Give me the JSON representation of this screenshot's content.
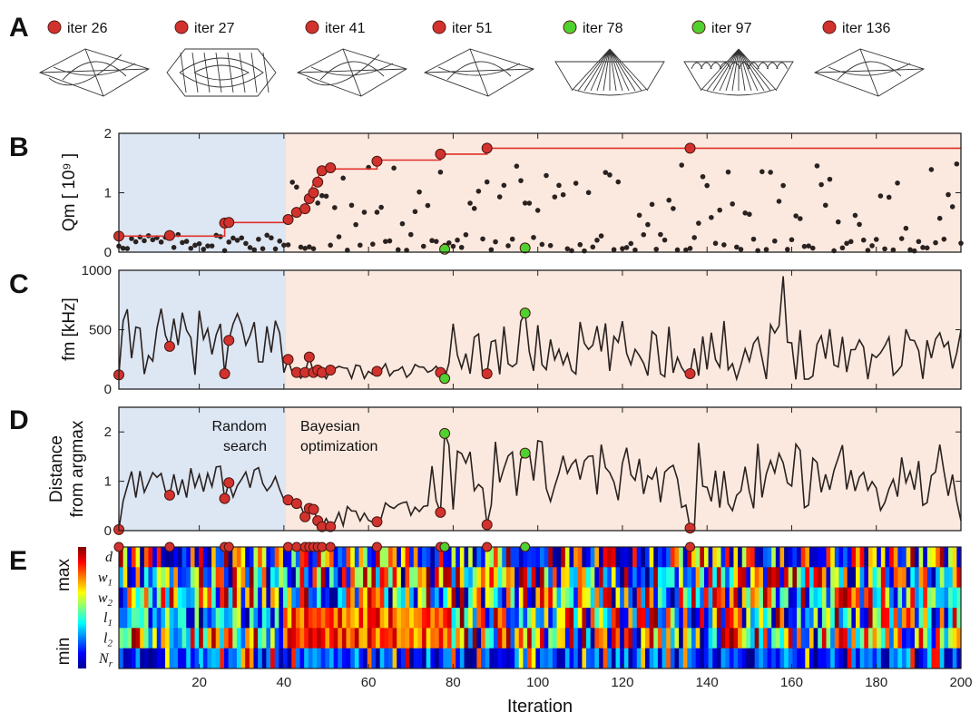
{
  "panel_labels": [
    "A",
    "B",
    "C",
    "D",
    "E"
  ],
  "colors": {
    "red_marker": "#d2322d",
    "green_marker": "#4fd130",
    "random_bg": "#dde6f3",
    "bayes_bg": "#fbe9df",
    "line": "#2a2220",
    "best_line": "#e0302a"
  },
  "header_iters": [
    {
      "label": "iter 26",
      "color": "red",
      "shape": "twisted"
    },
    {
      "label": "iter 27",
      "color": "red",
      "shape": "ellipse-cage"
    },
    {
      "label": "iter 41",
      "color": "red",
      "shape": "lens"
    },
    {
      "label": "iter 51",
      "color": "red",
      "shape": "diamond"
    },
    {
      "label": "iter 78",
      "color": "green",
      "shape": "dome"
    },
    {
      "label": "iter 97",
      "color": "green",
      "shape": "wavy-dome"
    },
    {
      "label": "iter 136",
      "color": "red",
      "shape": "diamond"
    }
  ],
  "annotations": {
    "random": [
      "Random",
      "search"
    ],
    "bayes": [
      "Bayesian",
      "optimization"
    ]
  },
  "heatmap": {
    "rows": [
      "d",
      "w1",
      "w2",
      "l1",
      "l2",
      "Nr"
    ],
    "colorbar_max": "max",
    "colorbar_min": "min"
  },
  "chart_data": [
    {
      "type": "scatter",
      "panel": "B",
      "ylabel": "Qm [ 10⁹ ]",
      "ylim": [
        0,
        2
      ],
      "yticks": [
        "0",
        "1",
        "2"
      ],
      "xlim": [
        1,
        200
      ],
      "regions": [
        {
          "name": "Random search",
          "x": [
            1,
            40
          ]
        },
        {
          "name": "Bayesian optimization",
          "x": [
            40,
            200
          ]
        }
      ],
      "best_so_far": [
        [
          1,
          0.27
        ],
        [
          26,
          0.27
        ],
        [
          26,
          0.5
        ],
        [
          40,
          0.5
        ],
        [
          41,
          0.55
        ],
        [
          43,
          0.7
        ],
        [
          45,
          0.75
        ],
        [
          46,
          1.0
        ],
        [
          47,
          1.15
        ],
        [
          48,
          1.25
        ],
        [
          49,
          1.4
        ],
        [
          62,
          1.4
        ],
        [
          62,
          1.55
        ],
        [
          77,
          1.55
        ],
        [
          77,
          1.65
        ],
        [
          88,
          1.65
        ],
        [
          88,
          1.75
        ],
        [
          200,
          1.75
        ]
      ],
      "highlight_points": [
        {
          "x": 1,
          "y": 0.27,
          "color": "red"
        },
        {
          "x": 13,
          "y": 0.28,
          "color": "red"
        },
        {
          "x": 26,
          "y": 0.49,
          "color": "red"
        },
        {
          "x": 27,
          "y": 0.5,
          "color": "red"
        },
        {
          "x": 41,
          "y": 0.55,
          "color": "red"
        },
        {
          "x": 43,
          "y": 0.67,
          "color": "red"
        },
        {
          "x": 45,
          "y": 0.73,
          "color": "red"
        },
        {
          "x": 46,
          "y": 0.9,
          "color": "red"
        },
        {
          "x": 47,
          "y": 1.0,
          "color": "red"
        },
        {
          "x": 48,
          "y": 1.18,
          "color": "red"
        },
        {
          "x": 49,
          "y": 1.37,
          "color": "red"
        },
        {
          "x": 51,
          "y": 1.42,
          "color": "red"
        },
        {
          "x": 62,
          "y": 1.53,
          "color": "red"
        },
        {
          "x": 77,
          "y": 1.65,
          "color": "red"
        },
        {
          "x": 78,
          "y": 0.05,
          "color": "green"
        },
        {
          "x": 88,
          "y": 1.75,
          "color": "red"
        },
        {
          "x": 97,
          "y": 0.07,
          "color": "green"
        },
        {
          "x": 136,
          "y": 1.75,
          "color": "red"
        }
      ]
    },
    {
      "type": "line",
      "panel": "C",
      "ylabel": "fm [kHz]",
      "ylim": [
        0,
        1000
      ],
      "yticks": [
        "0",
        "500",
        "1000"
      ],
      "xlim": [
        1,
        200
      ],
      "highlight_points": [
        {
          "x": 1,
          "y": 120,
          "color": "red"
        },
        {
          "x": 13,
          "y": 360,
          "color": "red"
        },
        {
          "x": 26,
          "y": 130,
          "color": "red"
        },
        {
          "x": 27,
          "y": 410,
          "color": "red"
        },
        {
          "x": 41,
          "y": 250,
          "color": "red"
        },
        {
          "x": 43,
          "y": 140,
          "color": "red"
        },
        {
          "x": 45,
          "y": 140,
          "color": "red"
        },
        {
          "x": 46,
          "y": 270,
          "color": "red"
        },
        {
          "x": 47,
          "y": 140,
          "color": "red"
        },
        {
          "x": 48,
          "y": 160,
          "color": "red"
        },
        {
          "x": 49,
          "y": 140,
          "color": "red"
        },
        {
          "x": 51,
          "y": 160,
          "color": "red"
        },
        {
          "x": 62,
          "y": 150,
          "color": "red"
        },
        {
          "x": 77,
          "y": 140,
          "color": "red"
        },
        {
          "x": 78,
          "y": 90,
          "color": "green"
        },
        {
          "x": 88,
          "y": 130,
          "color": "red"
        },
        {
          "x": 97,
          "y": 640,
          "color": "green"
        },
        {
          "x": 136,
          "y": 130,
          "color": "red"
        }
      ]
    },
    {
      "type": "line",
      "panel": "D",
      "ylabel": "Distance from argmax",
      "ylim": [
        0,
        2.5
      ],
      "yticks": [
        "0",
        "1",
        "2"
      ],
      "xlim": [
        1,
        200
      ],
      "xticks": [
        "20",
        "40",
        "60",
        "80",
        "100",
        "120",
        "140",
        "160",
        "180",
        "200"
      ],
      "xlabel": "Iteration",
      "highlight_points": [
        {
          "x": 1,
          "y": 0.02,
          "color": "red"
        },
        {
          "x": 13,
          "y": 0.72,
          "color": "red"
        },
        {
          "x": 26,
          "y": 0.65,
          "color": "red"
        },
        {
          "x": 27,
          "y": 0.97,
          "color": "red"
        },
        {
          "x": 41,
          "y": 0.62,
          "color": "red"
        },
        {
          "x": 43,
          "y": 0.55,
          "color": "red"
        },
        {
          "x": 45,
          "y": 0.28,
          "color": "red"
        },
        {
          "x": 46,
          "y": 0.45,
          "color": "red"
        },
        {
          "x": 47,
          "y": 0.43,
          "color": "red"
        },
        {
          "x": 48,
          "y": 0.2,
          "color": "red"
        },
        {
          "x": 49,
          "y": 0.08,
          "color": "red"
        },
        {
          "x": 51,
          "y": 0.08,
          "color": "red"
        },
        {
          "x": 62,
          "y": 0.18,
          "color": "red"
        },
        {
          "x": 77,
          "y": 0.37,
          "color": "red"
        },
        {
          "x": 78,
          "y": 1.97,
          "color": "green"
        },
        {
          "x": 88,
          "y": 0.12,
          "color": "red"
        },
        {
          "x": 97,
          "y": 1.57,
          "color": "green"
        },
        {
          "x": 136,
          "y": 0.05,
          "color": "red"
        }
      ]
    },
    {
      "type": "heatmap",
      "panel": "E",
      "rows": [
        "d",
        "w1",
        "w2",
        "l1",
        "l2",
        "Nr"
      ],
      "xlim": [
        1,
        200
      ],
      "colorbar": [
        "min",
        "max"
      ],
      "highlight_iters": [
        1,
        13,
        26,
        27,
        41,
        43,
        45,
        46,
        47,
        48,
        49,
        51,
        62,
        77,
        78,
        88,
        97,
        136
      ]
    }
  ]
}
